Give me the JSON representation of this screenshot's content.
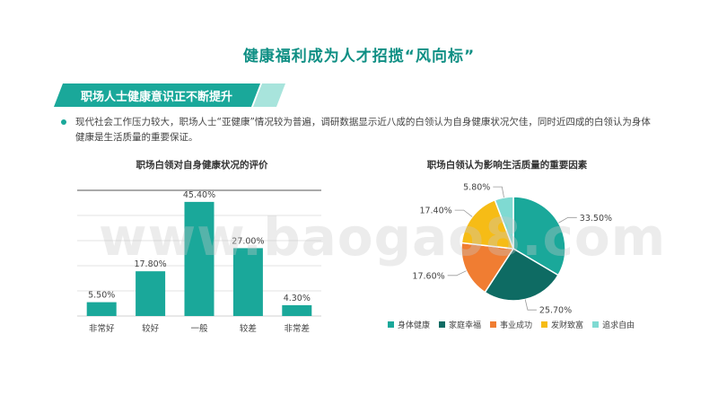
{
  "title": "健康福利成为人才招揽“风向标”",
  "section_heading": "职场人士健康意识正不断提升",
  "description": "现代社会工作压力较大，职场人士“亚健康”情况较为普遍，调研数据显示近八成的白领认为自身健康状况欠佳，同时近四成的白领认为身体健康是生活质量的重要保证。",
  "watermark": "www.baogao8.com",
  "colors": {
    "accent": "#1aa89a",
    "title": "#0f8f84",
    "banner_light": "#a8e4dc",
    "bar": "#1aa89a"
  },
  "chart_data": [
    {
      "type": "bar",
      "title": "职场白领对自身健康状况的评价",
      "categories": [
        "非常好",
        "较好",
        "一般",
        "较差",
        "非常差"
      ],
      "values": [
        5.5,
        17.8,
        45.4,
        27.0,
        4.3
      ],
      "labels": [
        "5.50%",
        "17.80%",
        "45.40%",
        "27.00%",
        "4.30%"
      ],
      "ylim": [
        0,
        50
      ],
      "grid": true
    },
    {
      "type": "pie",
      "title": "职场白领认为影响生活质量的重要因素",
      "categories": [
        "身体健康",
        "家庭幸福",
        "事业成功",
        "发财致富",
        "追求自由"
      ],
      "values": [
        33.5,
        25.7,
        17.6,
        17.4,
        5.8
      ],
      "labels": [
        "33.50%",
        "25.70%",
        "17.60%",
        "17.40%",
        "5.80%"
      ],
      "colors": [
        "#1aa89a",
        "#0e6b63",
        "#f07d32",
        "#f6bc16",
        "#7fdad2"
      ],
      "legend": "bottom"
    }
  ]
}
